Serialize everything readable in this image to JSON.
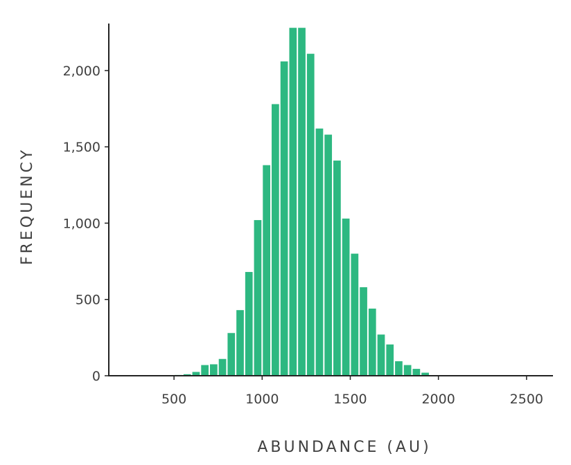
{
  "chart_data": {
    "type": "bar",
    "title": "",
    "xlabel": "ABUNDANCE (AU)",
    "ylabel": "FREQUENCY",
    "xlim": [
      130,
      2650
    ],
    "ylim": [
      0,
      2290
    ],
    "grid": false,
    "legend": "none",
    "bar_color": "#2db881",
    "bin_width": 50,
    "x_ticks": [
      {
        "value": 500,
        "label": "500"
      },
      {
        "value": 1000,
        "label": "1000"
      },
      {
        "value": 1500,
        "label": "1500"
      },
      {
        "value": 2000,
        "label": "2000"
      },
      {
        "value": 2500,
        "label": "2500"
      }
    ],
    "y_ticks": [
      {
        "value": 0,
        "label": "0"
      },
      {
        "value": 500,
        "label": "500"
      },
      {
        "value": 1000,
        "label": "1,000"
      },
      {
        "value": 1500,
        "label": "1,500"
      },
      {
        "value": 2000,
        "label": "2,000"
      }
    ],
    "bins": [
      {
        "x": 300,
        "value": 1
      },
      {
        "x": 350,
        "value": 1
      },
      {
        "x": 400,
        "value": 2
      },
      {
        "x": 450,
        "value": 3
      },
      {
        "x": 500,
        "value": 5
      },
      {
        "x": 550,
        "value": 10
      },
      {
        "x": 600,
        "value": 25
      },
      {
        "x": 650,
        "value": 70
      },
      {
        "x": 700,
        "value": 75
      },
      {
        "x": 750,
        "value": 110
      },
      {
        "x": 800,
        "value": 280
      },
      {
        "x": 850,
        "value": 430
      },
      {
        "x": 900,
        "value": 680
      },
      {
        "x": 950,
        "value": 1020
      },
      {
        "x": 1000,
        "value": 1380
      },
      {
        "x": 1050,
        "value": 1780
      },
      {
        "x": 1100,
        "value": 2060
      },
      {
        "x": 1150,
        "value": 2280
      },
      {
        "x": 1200,
        "value": 2280
      },
      {
        "x": 1250,
        "value": 2110
      },
      {
        "x": 1300,
        "value": 1620
      },
      {
        "x": 1350,
        "value": 1580
      },
      {
        "x": 1400,
        "value": 1410
      },
      {
        "x": 1450,
        "value": 1030
      },
      {
        "x": 1500,
        "value": 800
      },
      {
        "x": 1550,
        "value": 580
      },
      {
        "x": 1600,
        "value": 440
      },
      {
        "x": 1650,
        "value": 270
      },
      {
        "x": 1700,
        "value": 205
      },
      {
        "x": 1750,
        "value": 95
      },
      {
        "x": 1800,
        "value": 70
      },
      {
        "x": 1850,
        "value": 45
      },
      {
        "x": 1900,
        "value": 20
      }
    ]
  }
}
